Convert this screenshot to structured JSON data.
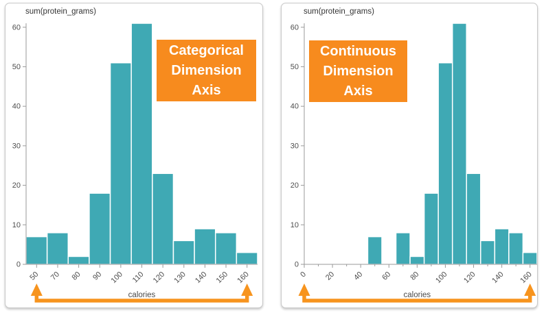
{
  "page": {
    "background": "#ffffff"
  },
  "colors": {
    "bar": "#3fa9b4",
    "bar_stroke": "#ffffff",
    "annotation_bg": "#f78b1e",
    "annotation_text": "#ffffff",
    "arrow": "#f7941e",
    "axis_line": "#999999",
    "tick_label": "#4d4d4d",
    "axis_title": "#333333",
    "x_label": "#4a4a4a",
    "card_border": "#c9c9c9"
  },
  "chart_data": [
    {
      "id": "categorical-dimension-axis",
      "type": "bar",
      "y_axis_title": "sum(protein_grams)",
      "x_axis_label": "calories",
      "annotation": {
        "lines": [
          "Categorical",
          "Dimension",
          "Axis"
        ]
      },
      "x_type": "categorical",
      "categories": [
        "50",
        "70",
        "80",
        "90",
        "100",
        "110",
        "120",
        "130",
        "140",
        "150",
        "160"
      ],
      "values": [
        7,
        8,
        2,
        18,
        51,
        61,
        23,
        6,
        9,
        8,
        3
      ],
      "y_ticks": [
        0,
        10,
        20,
        30,
        40,
        50,
        60
      ],
      "y_max": 61,
      "ylim": [
        0,
        61
      ],
      "grid": false,
      "range_arrow": {
        "from_label": "50",
        "to_label": "160"
      }
    },
    {
      "id": "continuous-dimension-axis",
      "type": "bar",
      "y_axis_title": "sum(protein_grams)",
      "x_axis_label": "calories",
      "annotation": {
        "lines": [
          "Continuous",
          "Dimension",
          "Axis"
        ]
      },
      "x_type": "continuous",
      "x_domain": [
        0,
        165
      ],
      "x_major_ticks": [
        0,
        20,
        40,
        60,
        80,
        100,
        120,
        140,
        160
      ],
      "x_minor_tick_step": 10,
      "bin_width": 10,
      "bin_centers": [
        50,
        70,
        80,
        90,
        100,
        110,
        120,
        130,
        140,
        150,
        160
      ],
      "values": [
        7,
        8,
        2,
        18,
        51,
        61,
        23,
        6,
        9,
        8,
        3
      ],
      "y_ticks": [
        0,
        10,
        20,
        30,
        40,
        50,
        60
      ],
      "y_max": 61,
      "ylim": [
        0,
        61
      ],
      "grid": false,
      "range_arrow": {
        "from_value": 0,
        "to_value": 160
      }
    }
  ]
}
